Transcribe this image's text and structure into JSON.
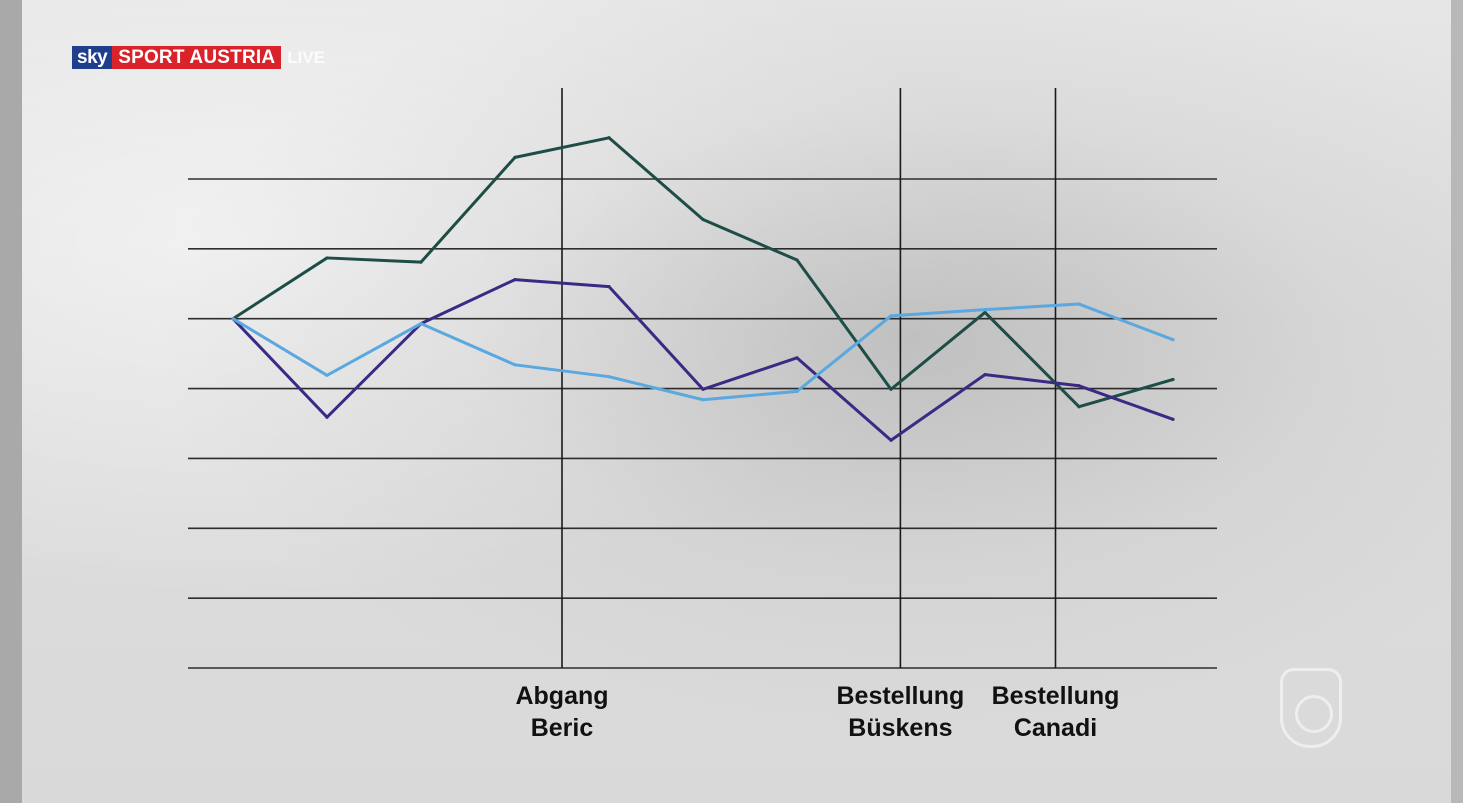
{
  "broadcast": {
    "brand_sky": "sky",
    "brand_channel": "SPORT AUSTRIA",
    "live_label": "LIVE"
  },
  "colors": {
    "brand_blue": "#1d3f8c",
    "brand_red": "#d9222a",
    "series_dark_green": "#1e4d47",
    "series_purple": "#3a2a86",
    "series_light_blue": "#5aa8e0",
    "grid": "#1a1a1a"
  },
  "chart_data": {
    "type": "line",
    "title": "",
    "xlabel": "",
    "ylabel": "",
    "grid": true,
    "legend": "none",
    "x": [
      1,
      2,
      3,
      4,
      5,
      6,
      7,
      8,
      9,
      10,
      11,
      12
    ],
    "xlim": [
      0,
      13
    ],
    "ylim": [
      0,
      7
    ],
    "y_gridlines": [
      0,
      1,
      2,
      3,
      4,
      5,
      6,
      7
    ],
    "series": [
      {
        "color": "#1e4d47",
        "values": [
          5.0,
          5.87,
          5.81,
          7.31,
          7.59,
          6.42,
          5.84,
          3.99,
          5.09,
          3.74,
          4.13,
          null
        ]
      },
      {
        "color": "#3a2a86",
        "values": [
          5.0,
          3.59,
          4.93,
          5.56,
          5.46,
          3.99,
          4.44,
          3.26,
          4.2,
          4.04,
          3.56,
          null
        ]
      },
      {
        "color": "#5aa8e0",
        "values": [
          5.0,
          4.19,
          4.93,
          4.34,
          4.17,
          3.84,
          3.96,
          5.04,
          5.13,
          5.21,
          4.7,
          null
        ]
      }
    ],
    "events": [
      {
        "x": 4.5,
        "label_line1": "Abgang",
        "label_line2": "Beric"
      },
      {
        "x": 8.1,
        "label_line1": "Bestellung",
        "label_line2": "Büskens"
      },
      {
        "x": 9.75,
        "label_line1": "Bestellung",
        "label_line2": "Canadi"
      }
    ]
  }
}
